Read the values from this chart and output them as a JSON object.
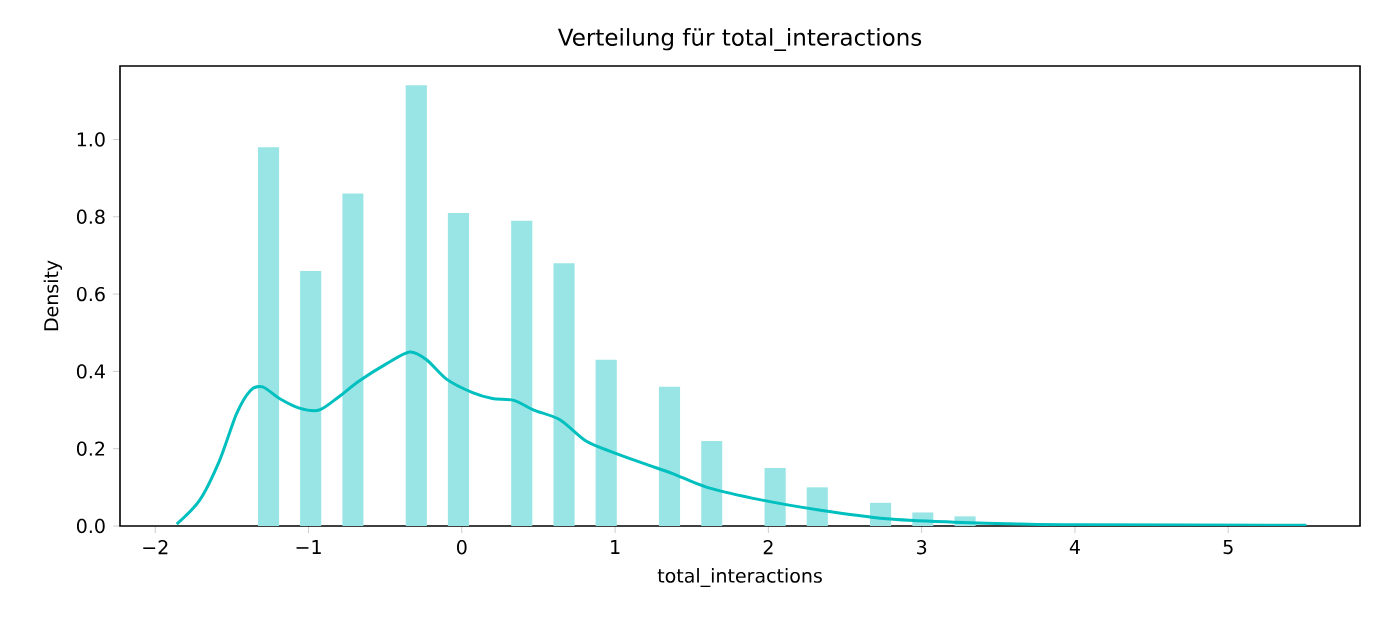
{
  "chart_data": {
    "type": "histogram",
    "title": "Verteilung für total_interactions",
    "xlabel": "total_interactions",
    "ylabel": "Density",
    "series": [
      {
        "color": "#99e5e5",
        "bins": [
          -1.33,
          -1.192,
          -1.055,
          -0.917,
          -0.779,
          -0.642,
          -0.504,
          -0.366,
          -0.228,
          -0.091,
          0.047,
          0.185,
          0.322,
          0.46,
          0.598,
          0.736,
          0.873,
          1.011,
          1.149,
          1.286,
          1.424,
          1.562,
          1.699,
          1.837,
          1.975,
          2.113,
          2.25,
          2.388,
          2.526,
          2.663,
          2.801,
          2.939,
          3.076,
          3.214,
          3.352,
          3.49,
          3.627,
          3.765,
          3.903,
          4.04,
          4.178,
          4.316,
          4.453,
          4.591,
          4.729,
          4.867,
          5.004,
          5.142,
          5.28,
          5.417,
          5.555
        ],
        "values": [
          0.98,
          0,
          0.66,
          0,
          0.86,
          0,
          0,
          1.14,
          0,
          0.81,
          0,
          0,
          0.79,
          0,
          0.68,
          0,
          0.43,
          0,
          0,
          0.36,
          0,
          0.22,
          0,
          0,
          0.15,
          0,
          0.1,
          0,
          0,
          0.06,
          0,
          0.035,
          0,
          0.025,
          0,
          0,
          0,
          0,
          0,
          0,
          0,
          0,
          0,
          0,
          0,
          0,
          0,
          0,
          0,
          0
        ]
      },
      {
        "type": "line",
        "color": "#00bfbf",
        "x": [
          -1.86,
          -1.71,
          -1.58,
          -1.47,
          -1.38,
          -1.3,
          -1.19,
          -1.06,
          -0.93,
          -0.8,
          -0.67,
          -0.49,
          -0.34,
          -0.23,
          -0.1,
          0.07,
          0.2,
          0.34,
          0.47,
          0.64,
          0.81,
          0.99,
          1.2,
          1.38,
          1.6,
          1.96,
          2.34,
          2.77,
          3.21,
          3.64,
          4.03,
          5.51
        ],
        "values": [
          0.005,
          0.067,
          0.17,
          0.29,
          0.35,
          0.36,
          0.33,
          0.305,
          0.3,
          0.335,
          0.375,
          0.42,
          0.45,
          0.43,
          0.38,
          0.345,
          0.33,
          0.325,
          0.3,
          0.275,
          0.22,
          0.19,
          0.16,
          0.135,
          0.1,
          0.067,
          0.041,
          0.019,
          0.01,
          0.005,
          0.003,
          0.002
        ]
      }
    ],
    "xlim": [
      -2.23,
      5.86
    ],
    "ylim": [
      0,
      1.19
    ],
    "xticks": [
      {
        "value": -2,
        "label": "−2"
      },
      {
        "value": -1,
        "label": "−1"
      },
      0,
      1,
      2,
      3,
      4,
      5
    ],
    "yticks": [
      {
        "value": 0,
        "label": "0.0"
      },
      {
        "value": 0.2,
        "label": "0.2"
      },
      {
        "value": 0.4,
        "label": "0.4"
      },
      {
        "value": 0.6,
        "label": "0.6"
      },
      {
        "value": 0.8,
        "label": "0.8"
      },
      {
        "value": 1,
        "label": "1.0"
      }
    ]
  }
}
